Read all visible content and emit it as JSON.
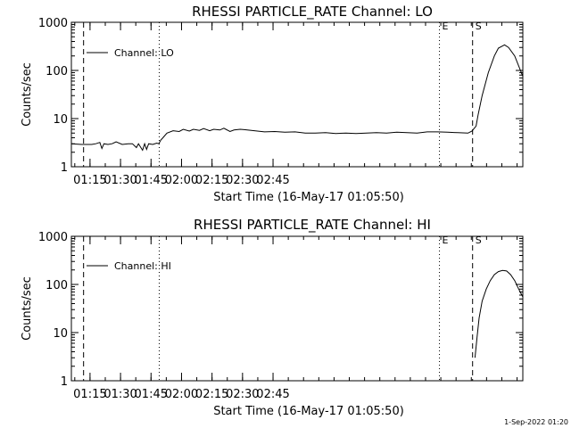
{
  "footer_timestamp": "1-Sep-2022 01:20",
  "colors": {
    "foreground": "#000000",
    "background": "#ffffff"
  },
  "chart_data": [
    {
      "type": "line",
      "title": "RHESSI PARTICLE_RATE Channel: LO",
      "xlabel": "Start Time (16-May-17 01:05:50)",
      "ylabel": "Counts/sec",
      "x_unit": "minutes after 01:05:50",
      "xlim": [
        0,
        222
      ],
      "ylim": [
        1,
        1000
      ],
      "y_scale": "log",
      "xticks": [
        "01:15",
        "01:30",
        "01:45",
        "02:00",
        "02:15",
        "02:30",
        "02:45"
      ],
      "yticks": [
        "1",
        "10",
        "100",
        "1000"
      ],
      "grid": false,
      "legend": {
        "position": "top-left",
        "entries": [
          "Channel: LO"
        ]
      },
      "markers": [
        {
          "label": "",
          "x": 6.0,
          "style": "dashed"
        },
        {
          "label": "",
          "x": 43.2,
          "style": "dotted"
        },
        {
          "label": "E",
          "x": 181.0,
          "style": "dotted"
        },
        {
          "label": "S",
          "x": 197.3,
          "style": "dashed"
        },
        {
          "label": "",
          "x": 222.0,
          "style": "dashdot"
        }
      ],
      "series": [
        {
          "name": "Channel: LO",
          "x": [
            0,
            5,
            10,
            12,
            14,
            15,
            16,
            18,
            20,
            22,
            25,
            28,
            30,
            32,
            33,
            35,
            36,
            37,
            38,
            40,
            42,
            43,
            44,
            45,
            47,
            50,
            53,
            55,
            58,
            60,
            63,
            65,
            68,
            70,
            73,
            75,
            78,
            80,
            83,
            85,
            90,
            95,
            100,
            105,
            110,
            115,
            120,
            125,
            130,
            135,
            140,
            145,
            150,
            155,
            160,
            165,
            170,
            175,
            180,
            185,
            190,
            195,
            197,
            199,
            200,
            202,
            205,
            208,
            210,
            213,
            215,
            218,
            222
          ],
          "y": [
            3.0,
            2.9,
            2.9,
            3.0,
            3.2,
            2.4,
            3.0,
            2.9,
            3.0,
            3.3,
            2.9,
            3.0,
            3.0,
            2.5,
            3.0,
            2.2,
            3.0,
            2.3,
            3.0,
            2.9,
            3.1,
            3.0,
            3.6,
            4.0,
            5.0,
            5.6,
            5.4,
            6.0,
            5.5,
            6.0,
            5.7,
            6.2,
            5.6,
            6.0,
            5.8,
            6.3,
            5.4,
            5.8,
            6.0,
            5.9,
            5.6,
            5.3,
            5.4,
            5.2,
            5.3,
            5.0,
            5.0,
            5.1,
            4.9,
            5.0,
            4.9,
            5.0,
            5.1,
            5.0,
            5.2,
            5.1,
            5.0,
            5.3,
            5.3,
            5.2,
            5.1,
            5.0,
            5.5,
            7.0,
            12,
            30,
            90,
            200,
            290,
            340,
            300,
            200,
            75
          ]
        }
      ]
    },
    {
      "type": "line",
      "title": "RHESSI PARTICLE_RATE Channel: HI",
      "xlabel": "Start Time (16-May-17 01:05:50)",
      "ylabel": "Counts/sec",
      "x_unit": "minutes after 01:05:50",
      "xlim": [
        0,
        222
      ],
      "ylim": [
        1,
        1000
      ],
      "y_scale": "log",
      "xticks": [
        "01:15",
        "01:30",
        "01:45",
        "02:00",
        "02:15",
        "02:30",
        "02:45"
      ],
      "yticks": [
        "1",
        "10",
        "100",
        "1000"
      ],
      "grid": false,
      "legend": {
        "position": "top-left",
        "entries": [
          "Channel: HI"
        ]
      },
      "markers": [
        {
          "label": "",
          "x": 6.0,
          "style": "dashed"
        },
        {
          "label": "",
          "x": 43.2,
          "style": "dotted"
        },
        {
          "label": "E",
          "x": 181.0,
          "style": "dotted"
        },
        {
          "label": "S",
          "x": 197.3,
          "style": "dashed"
        },
        {
          "label": "",
          "x": 222.0,
          "style": "dashdot"
        }
      ],
      "series": [
        {
          "name": "Channel: HI",
          "x": [
            198.5,
            199.5,
            200.5,
            202,
            204,
            206,
            208,
            210,
            212,
            214,
            216,
            218,
            220,
            222
          ],
          "y": [
            3,
            8,
            20,
            45,
            80,
            120,
            160,
            185,
            195,
            190,
            160,
            120,
            80,
            55
          ]
        }
      ]
    }
  ]
}
